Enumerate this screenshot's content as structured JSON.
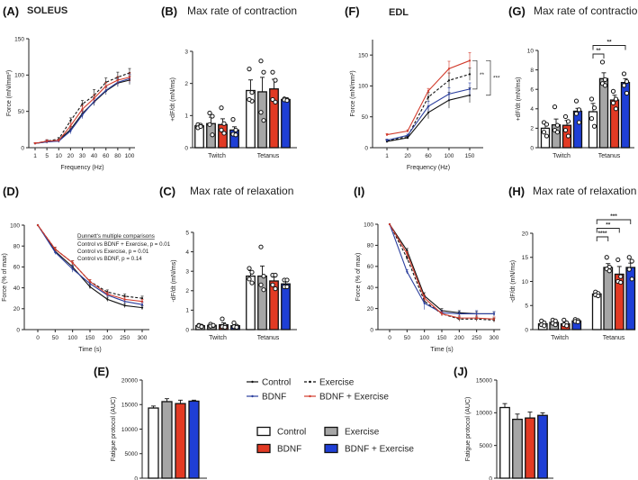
{
  "colors": {
    "control": "#ffffff",
    "exercise": "#a6a6a6",
    "bdnf_bar": "#e23a24",
    "bdnf_ex_bar": "#1f3fd6",
    "bdnf_line": "#2b3f9e",
    "bdnf_ex_line": "#d23b2c",
    "axis": "#222222"
  },
  "panels": {
    "A": {
      "letter": "(A)",
      "title": "SOLEUS"
    },
    "B": {
      "letter": "(B)",
      "title": "Max rate of contraction"
    },
    "C": {
      "letter": "(C)",
      "title": "Max rate of relaxation"
    },
    "D": {
      "letter": "(D)",
      "annotation": {
        "heading": "Dunnett's multiple comparisons",
        "lines": [
          "Control vs BDNF + Exercise, p = 0.01",
          "Control vs Exercise, p = 0.01",
          "Control vs BDNF, p = 0.14"
        ]
      }
    },
    "E": {
      "letter": "(E)"
    },
    "F": {
      "letter": "(F)",
      "title": "EDL"
    },
    "G": {
      "letter": "(G)",
      "title": "Max rate of contraction"
    },
    "H": {
      "letter": "(H)",
      "title": "Max rate of relaxation"
    },
    "I": {
      "letter": "(I)"
    },
    "J": {
      "letter": "(J)"
    }
  },
  "legend_lines": [
    {
      "label": "Control",
      "style": "solid",
      "color": "#111111"
    },
    {
      "label": "Exercise",
      "style": "dashed",
      "color": "#111111"
    },
    {
      "label": "BDNF",
      "style": "solid",
      "color": "#2b3f9e"
    },
    {
      "label": "BDNF + Exercise",
      "style": "solid",
      "color": "#d23b2c"
    }
  ],
  "legend_bars": [
    {
      "label": "Control",
      "color": "#ffffff"
    },
    {
      "label": "Exercise",
      "color": "#a6a6a6"
    },
    {
      "label": "BDNF",
      "color": "#e23a24"
    },
    {
      "label": "BDNF + Exercise",
      "color": "#1f3fd6"
    }
  ],
  "chart_data": [
    {
      "panel": "A",
      "type": "line",
      "xlabel": "Frequency (Hz)",
      "ylabel": "Force (mN/mm²)",
      "categories": [
        "1",
        "5",
        "10",
        "20",
        "30",
        "40",
        "60",
        "80",
        "100"
      ],
      "ylim": [
        0,
        150
      ],
      "yticks": [
        0,
        50,
        100,
        150
      ],
      "series": [
        {
          "name": "Control",
          "values": [
            6,
            8,
            10,
            25,
            47,
            63,
            78,
            89,
            93
          ],
          "error": [
            1,
            2,
            2,
            4,
            5,
            5,
            5,
            5,
            6
          ]
        },
        {
          "name": "Exercise",
          "values": [
            6,
            9,
            12,
            37,
            60,
            72,
            90,
            97,
            103
          ],
          "error": [
            1,
            2,
            2,
            4,
            5,
            8,
            6,
            7,
            6
          ]
        },
        {
          "name": "BDNF",
          "values": [
            6,
            8,
            9,
            23,
            45,
            64,
            79,
            90,
            95
          ],
          "error": [
            1,
            2,
            2,
            4,
            5,
            5,
            5,
            5,
            6
          ]
        },
        {
          "name": "BDNF + Exercise",
          "values": [
            6,
            9,
            10,
            30,
            53,
            68,
            85,
            93,
            97
          ],
          "error": [
            1,
            2,
            2,
            4,
            5,
            5,
            5,
            5,
            6
          ]
        }
      ]
    },
    {
      "panel": "B",
      "type": "bar",
      "ylabel": "+dF/dt (mN/ms)",
      "categories": [
        "Twitch",
        "Tetanus"
      ],
      "ylim": [
        0,
        3
      ],
      "yticks": [
        0,
        1,
        2,
        3
      ],
      "series": [
        {
          "name": "Control",
          "values": [
            0.68,
            1.78
          ],
          "error": [
            0.05,
            0.33
          ],
          "points": [
            [
              0.72,
              0.7,
              0.62,
              0.66
            ],
            [
              2.45,
              1.45,
              1.5,
              1.72
            ]
          ]
        },
        {
          "name": "Exercise",
          "values": [
            0.75,
            1.74
          ],
          "error": [
            0.2,
            0.45
          ],
          "points": [
            [
              1.08,
              0.98,
              0.72,
              0.4
            ],
            [
              2.7,
              2.35,
              1.1,
              0.85
            ]
          ]
        },
        {
          "name": "BDNF",
          "values": [
            0.72,
            1.83
          ],
          "error": [
            0.18,
            0.3
          ],
          "points": [
            [
              1.24,
              0.75,
              0.55,
              0.45
            ],
            [
              2.35,
              2.1,
              1.5,
              1.42
            ]
          ]
        },
        {
          "name": "BDNF + Exercise",
          "values": [
            0.55,
            1.5
          ],
          "error": [
            0.1,
            0.03
          ],
          "points": [
            [
              0.88,
              0.55,
              0.42,
              0.4
            ],
            [
              1.52,
              1.5,
              1.49,
              1.47
            ]
          ]
        }
      ]
    },
    {
      "panel": "C",
      "type": "bar",
      "ylabel": "-dF/dt (mN/ms)",
      "categories": [
        "Twitch",
        "Tetanus"
      ],
      "ylim": [
        0,
        5
      ],
      "yticks": [
        0,
        1,
        2,
        3,
        4,
        5
      ],
      "series": [
        {
          "name": "Control",
          "values": [
            0.2,
            2.75
          ],
          "error": [
            0.03,
            0.28
          ],
          "points": [
            [
              0.22,
              0.18,
              0.2,
              0.15
            ],
            [
              3.15,
              2.95,
              2.6,
              2.4
            ]
          ]
        },
        {
          "name": "Exercise",
          "values": [
            0.22,
            2.75
          ],
          "error": [
            0.04,
            0.52
          ],
          "points": [
            [
              0.28,
              0.2,
              0.18,
              0.22
            ],
            [
              4.25,
              2.75,
              2.3,
              2.05
            ]
          ]
        },
        {
          "name": "BDNF",
          "values": [
            0.25,
            2.5
          ],
          "error": [
            0.1,
            0.2
          ],
          "points": [
            [
              0.55,
              0.2,
              0.15,
              0.12
            ],
            [
              2.8,
              2.8,
              2.3,
              2.1
            ]
          ]
        },
        {
          "name": "BDNF + Exercise",
          "values": [
            0.2,
            2.35
          ],
          "error": [
            0.06,
            0.12
          ],
          "points": [
            [
              0.35,
              0.18,
              0.15,
              0.12
            ],
            [
              2.55,
              2.55,
              2.2,
              2.2
            ]
          ]
        }
      ]
    },
    {
      "panel": "D",
      "type": "line",
      "xlabel": "Time (s)",
      "ylabel": "Force (% of max)",
      "categories": [
        "0",
        "50",
        "100",
        "150",
        "200",
        "250",
        "300"
      ],
      "ylim": [
        0,
        100
      ],
      "yticks": [
        0,
        20,
        40,
        60,
        80,
        100
      ],
      "series": [
        {
          "name": "Control",
          "values": [
            100,
            75,
            60,
            41,
            29,
            23,
            21
          ],
          "error": [
            0,
            2,
            2,
            2,
            2,
            2,
            2
          ]
        },
        {
          "name": "Exercise",
          "values": [
            100,
            77,
            64,
            46,
            36,
            32,
            30
          ],
          "error": [
            0,
            2,
            2,
            2,
            2,
            2,
            2
          ]
        },
        {
          "name": "BDNF",
          "values": [
            100,
            74,
            58,
            44,
            33,
            27,
            24
          ],
          "error": [
            0,
            2,
            3,
            2,
            2,
            2,
            2
          ]
        },
        {
          "name": "BDNF + Exercise",
          "values": [
            100,
            77,
            64,
            46,
            34,
            29,
            27
          ],
          "error": [
            0,
            2,
            2,
            2,
            2,
            2,
            2
          ]
        }
      ]
    },
    {
      "panel": "E",
      "type": "bar",
      "ylabel": "Fatigue protocol (AUC)",
      "categories": [
        ""
      ],
      "ylim": [
        0,
        20000
      ],
      "yticks": [
        0,
        5000,
        10000,
        15000,
        20000
      ],
      "series": [
        {
          "name": "Control",
          "values": [
            14300
          ],
          "error": [
            400
          ]
        },
        {
          "name": "Exercise",
          "values": [
            15600
          ],
          "error": [
            600
          ]
        },
        {
          "name": "BDNF",
          "values": [
            15200
          ],
          "error": [
            700
          ]
        },
        {
          "name": "BDNF + Exercise",
          "values": [
            15700
          ],
          "error": [
            200
          ]
        }
      ]
    },
    {
      "panel": "F",
      "type": "line",
      "xlabel": "Frequency (Hz)",
      "ylabel": "Force (mN/mm²)",
      "categories": [
        "1",
        "20",
        "60",
        "100",
        "150"
      ],
      "ylim": [
        0,
        175
      ],
      "yticks": [
        0,
        50,
        100,
        150
      ],
      "series": [
        {
          "name": "Control",
          "values": [
            10,
            16,
            57,
            77,
            85
          ],
          "error": [
            2,
            2,
            10,
            13,
            12
          ]
        },
        {
          "name": "Exercise",
          "values": [
            11,
            18,
            82,
            109,
            119
          ],
          "error": [
            2,
            2,
            8,
            12,
            10
          ]
        },
        {
          "name": "BDNF",
          "values": [
            12,
            20,
            67,
            87,
            95
          ],
          "error": [
            2,
            2,
            8,
            10,
            10
          ]
        },
        {
          "name": "BDNF + Exercise",
          "values": [
            21,
            27,
            92,
            128,
            141
          ],
          "error": [
            2,
            2,
            4,
            12,
            13
          ]
        }
      ],
      "significance": [
        {
          "from": "BDNF + Exercise",
          "to": "BDNF",
          "label": "**"
        },
        {
          "from": "BDNF + Exercise",
          "to": "Control",
          "label": "***"
        }
      ]
    },
    {
      "panel": "G",
      "type": "bar",
      "ylabel": "+dF/dt (mN/ms)",
      "categories": [
        "Twitch",
        "Tetanus"
      ],
      "ylim": [
        0,
        10
      ],
      "yticks": [
        0,
        2,
        4,
        6,
        8,
        10
      ],
      "series": [
        {
          "name": "Control",
          "values": [
            2.0,
            3.7
          ],
          "error": [
            0.5,
            0.85
          ],
          "points": [
            [
              2.6,
              2.4,
              1.6,
              1.2
            ],
            [
              5.0,
              4.1,
              3.0,
              2.2
            ]
          ]
        },
        {
          "name": "Exercise",
          "values": [
            2.35,
            7.1
          ],
          "error": [
            0.6,
            0.6
          ],
          "points": [
            [
              4.2,
              2.3,
              1.8,
              1.6
            ],
            [
              8.8,
              7.0,
              6.6,
              6.4
            ]
          ]
        },
        {
          "name": "BDNF",
          "values": [
            2.3,
            4.9
          ],
          "error": [
            0.5,
            0.5
          ],
          "points": [
            [
              3.2,
              2.7,
              1.8,
              1.2
            ],
            [
              5.8,
              5.0,
              4.6,
              4.0
            ]
          ]
        },
        {
          "name": "BDNF + Exercise",
          "values": [
            3.75,
            6.7
          ],
          "error": [
            0.3,
            0.4
          ],
          "points": [
            [
              4.8,
              3.9,
              3.5,
              2.6
            ],
            [
              7.6,
              6.8,
              6.4,
              5.6
            ]
          ]
        }
      ],
      "significance": [
        {
          "group": "Tetanus",
          "from": "Control",
          "to": "Exercise",
          "label": "**"
        },
        {
          "group": "Tetanus",
          "from": "Control",
          "to": "BDNF + Exercise",
          "label": "**"
        }
      ]
    },
    {
      "panel": "H",
      "type": "bar",
      "ylabel": "-dF/dt (mN/ms)",
      "categories": [
        "Twitch",
        "Tetanus"
      ],
      "ylim": [
        0,
        20
      ],
      "yticks": [
        0,
        5,
        10,
        15,
        20
      ],
      "series": [
        {
          "name": "Control",
          "values": [
            1.2,
            7.4
          ],
          "error": [
            0.3,
            0.3
          ],
          "points": [
            [
              1.8,
              1.4,
              1.0,
              0.8
            ],
            [
              7.8,
              7.5,
              7.2,
              7.0
            ]
          ]
        },
        {
          "name": "Exercise",
          "values": [
            1.5,
            12.9
          ],
          "error": [
            0.4,
            0.8
          ],
          "points": [
            [
              2.0,
              1.8,
              1.3,
              1.0
            ],
            [
              15.0,
              13.0,
              12.6,
              12.2
            ]
          ]
        },
        {
          "name": "BDNF",
          "values": [
            1.2,
            11.5
          ],
          "error": [
            0.4,
            1.6
          ],
          "points": [
            [
              2.0,
              1.4,
              1.0,
              0.8
            ],
            [
              14.5,
              11.0,
              10.0,
              9.8
            ]
          ]
        },
        {
          "name": "BDNF + Exercise",
          "values": [
            1.8,
            12.9
          ],
          "error": [
            0.2,
            0.9
          ],
          "points": [
            [
              2.1,
              1.9,
              1.7,
              1.6
            ],
            [
              15.0,
              14.2,
              12.5,
              10.5
            ]
          ]
        }
      ],
      "significance": [
        {
          "group": "Tetanus",
          "from": "Control",
          "to": "Exercise",
          "label": "****"
        },
        {
          "group": "Tetanus",
          "from": "Control",
          "to": "BDNF",
          "label": "**"
        },
        {
          "group": "Tetanus",
          "from": "Control",
          "to": "BDNF + Exercise",
          "label": "***"
        }
      ]
    },
    {
      "panel": "I",
      "type": "line",
      "xlabel": "Time (s)",
      "ylabel": "Force (% of max)",
      "categories": [
        "0",
        "50",
        "100",
        "150",
        "200",
        "250",
        "300"
      ],
      "ylim": [
        0,
        100
      ],
      "yticks": [
        0,
        20,
        40,
        60,
        80,
        100
      ],
      "series": [
        {
          "name": "Control",
          "values": [
            100,
            75,
            32,
            18,
            16,
            15,
            15
          ],
          "error": [
            0,
            2,
            3,
            2,
            2,
            2,
            2
          ]
        },
        {
          "name": "Exercise",
          "values": [
            100,
            68,
            27,
            15,
            10,
            10,
            9
          ],
          "error": [
            0,
            2,
            3,
            2,
            2,
            2,
            2
          ]
        },
        {
          "name": "BDNF",
          "values": [
            100,
            55,
            25,
            16,
            15,
            15,
            15
          ],
          "error": [
            0,
            2,
            6,
            2,
            2,
            3,
            2
          ]
        },
        {
          "name": "BDNF + Exercise",
          "values": [
            100,
            72,
            30,
            15,
            11,
            11,
            10
          ],
          "error": [
            0,
            2,
            3,
            2,
            2,
            2,
            2
          ]
        }
      ]
    },
    {
      "panel": "J",
      "type": "bar",
      "ylabel": "Fatigue protocol (AUC)",
      "categories": [
        ""
      ],
      "ylim": [
        0,
        15000
      ],
      "yticks": [
        0,
        5000,
        10000,
        15000
      ],
      "series": [
        {
          "name": "Control",
          "values": [
            10800
          ],
          "error": [
            600
          ]
        },
        {
          "name": "Exercise",
          "values": [
            9000
          ],
          "error": [
            800
          ]
        },
        {
          "name": "BDNF",
          "values": [
            9200
          ],
          "error": [
            900
          ]
        },
        {
          "name": "BDNF + Exercise",
          "values": [
            9600
          ],
          "error": [
            400
          ]
        }
      ]
    }
  ]
}
